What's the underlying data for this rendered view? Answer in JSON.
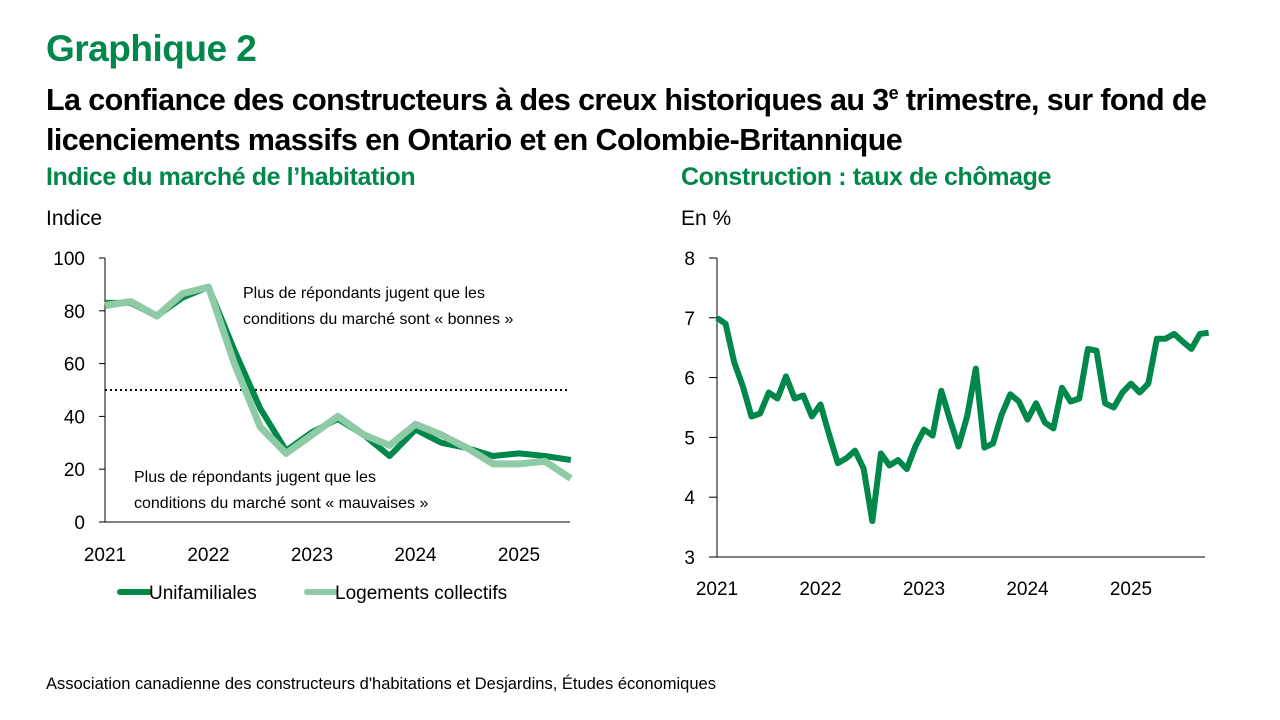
{
  "figure": {
    "label": "Graphique 2",
    "title_part1": "La confiance des constructeurs à des creux historiques au 3",
    "title_sup": "e",
    "title_part2": " trimestre, sur fond de licenciements massifs en Ontario et en Colombie-Britannique",
    "source": "Association canadienne des constructeurs d'habitations et Desjardins, Études économiques"
  },
  "colors": {
    "brand_green": "#00874a",
    "unifamiliales": "#00874a",
    "collectifs": "#8fcaa6",
    "axis": "#000000"
  },
  "chart_data": [
    {
      "type": "line",
      "title": "Indice du marché de l’habitation",
      "ylabel": "Indice",
      "xlabel": "",
      "frequency": "quarterly",
      "x": [
        "2021T1",
        "2021T2",
        "2021T3",
        "2021T4",
        "2022T1",
        "2022T2",
        "2022T3",
        "2022T4",
        "2023T1",
        "2023T2",
        "2023T3",
        "2023T4",
        "2024T1",
        "2024T2",
        "2024T3",
        "2024T4",
        "2025T1",
        "2025T2",
        "2025T3"
      ],
      "x_tick_labels": [
        "2021",
        "2022",
        "2023",
        "2024",
        "2025"
      ],
      "ylim": [
        0,
        100
      ],
      "y_ticks": [
        0,
        20,
        40,
        60,
        80,
        100
      ],
      "series": [
        {
          "name": "Unifamiliales",
          "values": [
            83,
            83,
            78,
            85,
            89,
            65,
            43,
            27,
            34,
            39,
            33,
            25,
            35,
            30,
            28,
            25,
            26,
            25,
            23.5
          ]
        },
        {
          "name": "Logements collectifs",
          "values": [
            82,
            83.5,
            78,
            86.5,
            89,
            60,
            36,
            26,
            33,
            40,
            33,
            29,
            37,
            33,
            28,
            22,
            22,
            23,
            16.5
          ]
        }
      ],
      "reference_line": {
        "y": 50,
        "style": "dotted"
      },
      "annotations": [
        {
          "line1": "Plus de répondants jugent que les",
          "line2": "conditions du marché sont « bonnes »"
        },
        {
          "line1": "Plus de répondants jugent que les",
          "line2": "conditions du marché sont « mauvaises »"
        }
      ],
      "legend": {
        "placement": "bottom",
        "entries": [
          "Unifamiliales",
          "Logements collectifs"
        ]
      },
      "grid": false
    },
    {
      "type": "line",
      "title": "Construction : taux de chômage",
      "ylabel": "En %",
      "xlabel": "",
      "frequency": "monthly",
      "x_start": "2021-01",
      "x_tick_labels": [
        "2021",
        "2022",
        "2023",
        "2024",
        "2025"
      ],
      "ylim": [
        3,
        8
      ],
      "y_ticks": [
        3,
        4,
        5,
        6,
        7,
        8
      ],
      "series": [
        {
          "name": "Taux de chômage construction",
          "values": [
            7.0,
            6.9,
            6.25,
            5.85,
            5.35,
            5.4,
            5.75,
            5.65,
            6.02,
            5.65,
            5.7,
            5.35,
            5.55,
            5.05,
            4.57,
            4.65,
            4.78,
            4.48,
            3.6,
            4.73,
            4.53,
            4.62,
            4.47,
            4.85,
            5.13,
            5.03,
            5.78,
            5.3,
            4.85,
            5.35,
            6.15,
            4.83,
            4.9,
            5.38,
            5.72,
            5.6,
            5.3,
            5.57,
            5.25,
            5.15,
            5.83,
            5.6,
            5.65,
            6.48,
            6.45,
            5.57,
            5.5,
            5.75,
            5.9,
            5.75,
            5.9,
            6.65,
            6.65,
            6.73,
            6.6,
            6.48,
            6.73,
            6.75
          ]
        }
      ],
      "grid": false
    }
  ]
}
